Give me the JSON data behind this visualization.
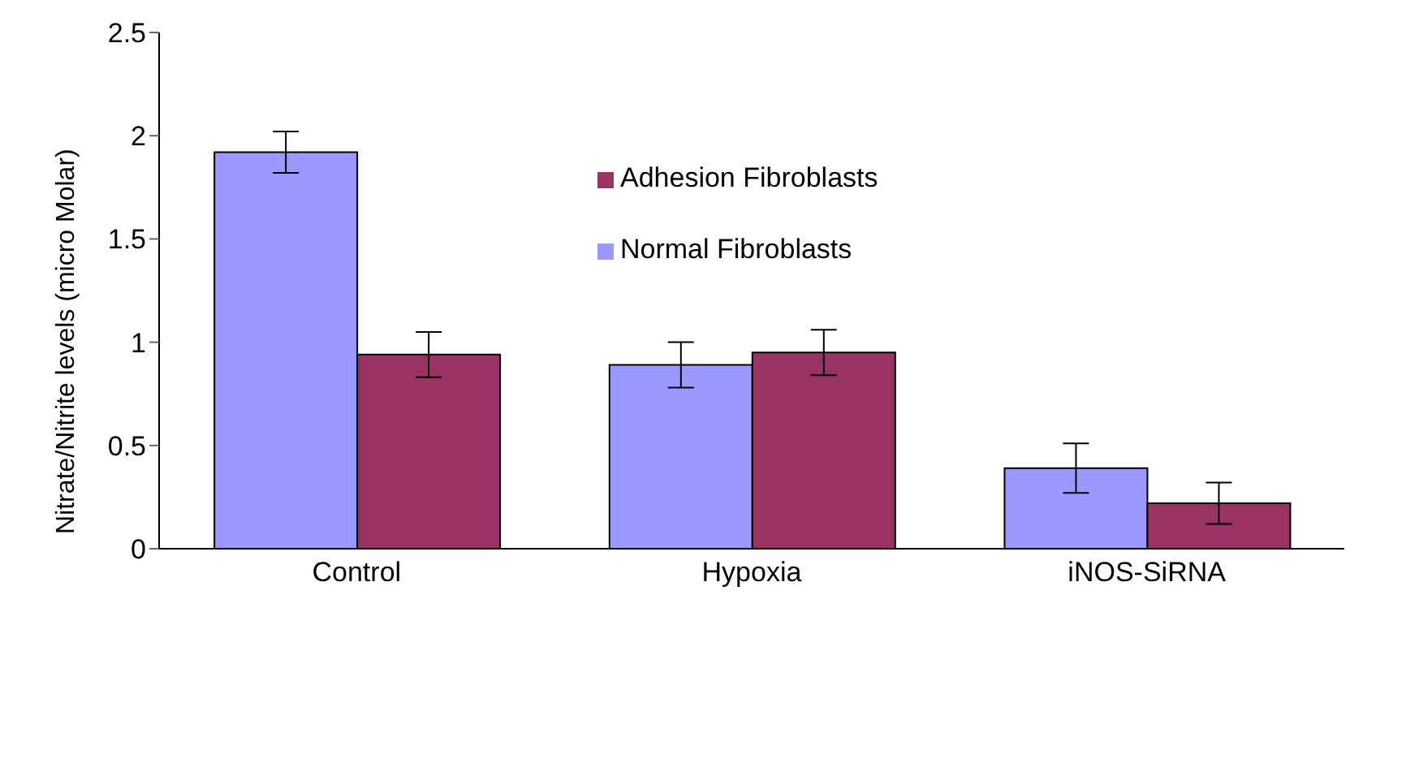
{
  "chart_data": {
    "type": "bar",
    "ylabel": "Nitrate/Nitrite levels (micro Molar)",
    "categories": [
      "Control",
      "Hypoxia",
      "iNOS-SiRNA"
    ],
    "series": [
      {
        "name": "Normal Fibroblasts",
        "color": "#9999ff",
        "values": [
          1.92,
          0.89,
          0.39
        ],
        "errors": [
          0.1,
          0.11,
          0.12
        ]
      },
      {
        "name": "Adhesion Fibroblasts",
        "color": "#993366",
        "values": [
          0.94,
          0.95,
          0.22
        ],
        "errors": [
          0.11,
          0.11,
          0.1
        ]
      }
    ],
    "ylim": [
      0,
      2.5
    ],
    "yticks": [
      0,
      0.5,
      1,
      1.5,
      2,
      2.5
    ],
    "grid": false,
    "legend": "top"
  }
}
